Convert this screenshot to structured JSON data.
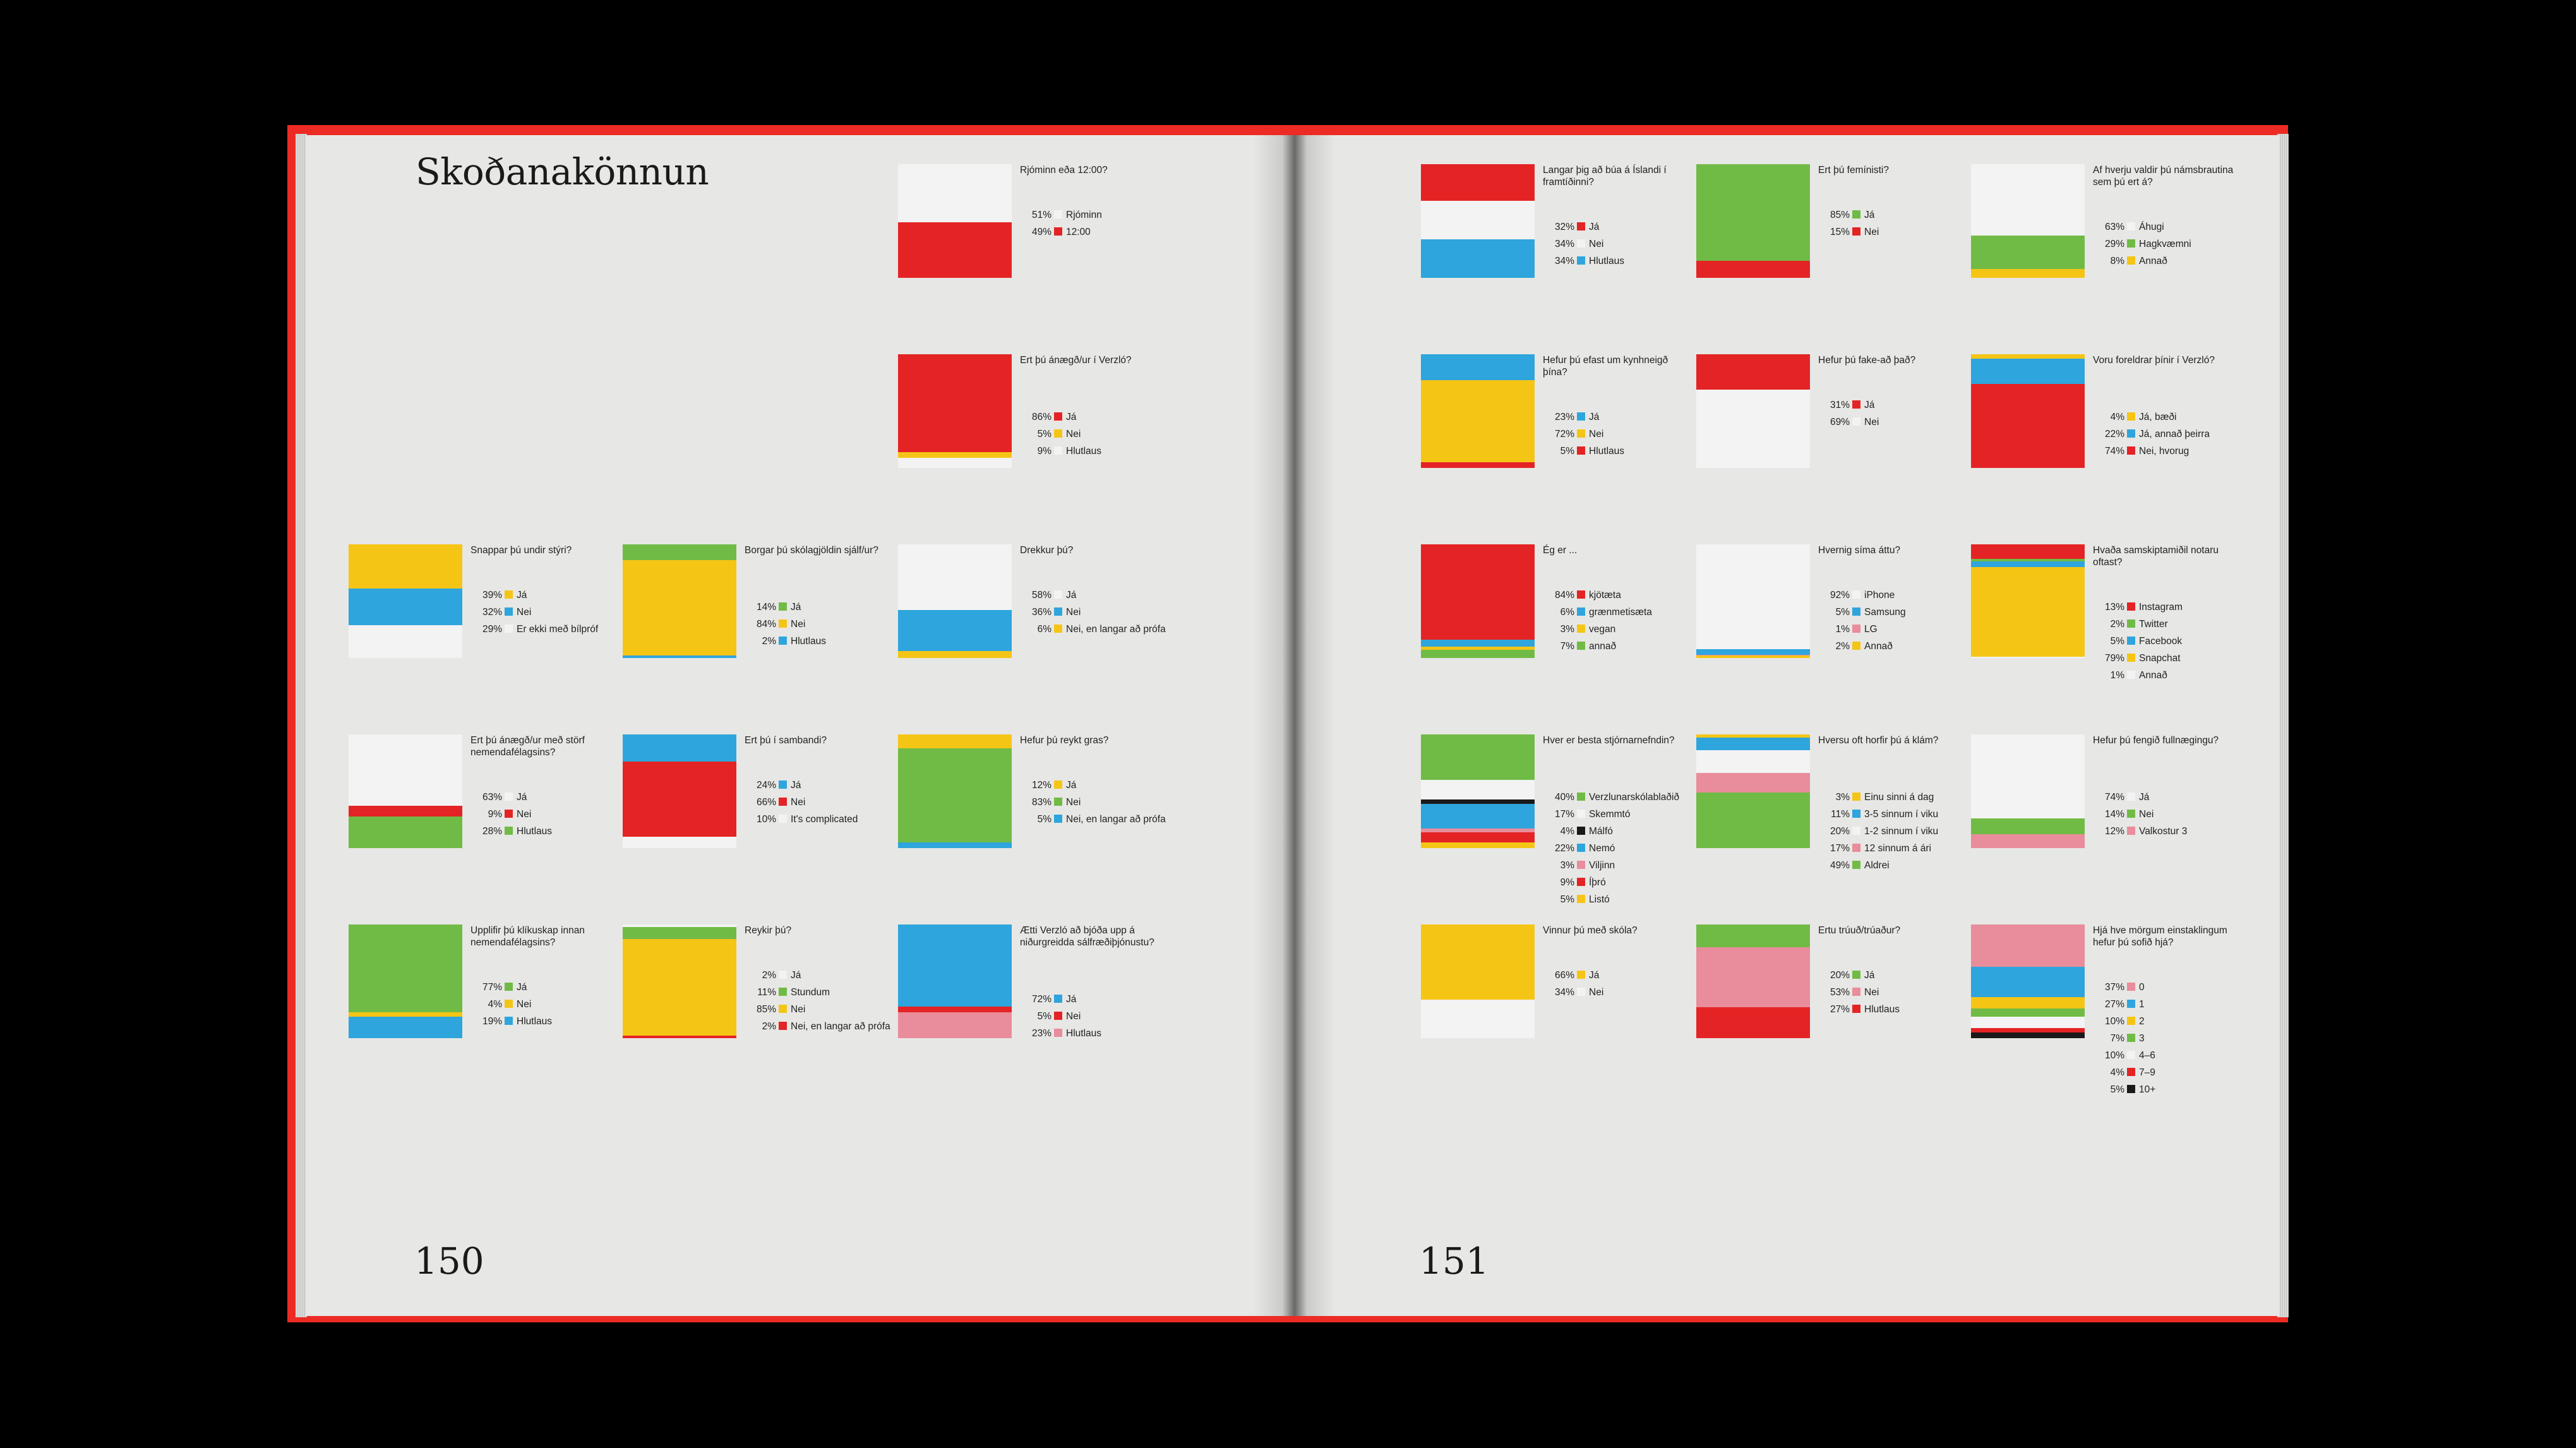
{
  "book": {
    "title": "Skoðanakönnun",
    "left_page_number": "150",
    "right_page_number": "151"
  },
  "colors": {
    "white": "#f3f3f3",
    "red": "#e42325",
    "yellow": "#f5c516",
    "blue": "#2ea5dc",
    "green": "#70bb45",
    "pink": "#e98c9b",
    "black": "#1a1a1a"
  },
  "chart_data": [
    {
      "type": "bar",
      "title": "Rjóminn eða 12:00?",
      "page": "150",
      "items": [
        {
          "label": "Rjóminn",
          "value": 51,
          "pct": "51%",
          "color": "white"
        },
        {
          "label": "12:00",
          "value": 49,
          "pct": "49%",
          "color": "red"
        }
      ]
    },
    {
      "type": "bar",
      "title": "Ert þú ánægð/ur í Verzló?",
      "page": "150",
      "items": [
        {
          "label": "Já",
          "value": 86,
          "pct": "86%",
          "color": "red"
        },
        {
          "label": "Nei",
          "value": 5,
          "pct": "5%",
          "color": "yellow"
        },
        {
          "label": "Hlutlaus",
          "value": 9,
          "pct": "9%",
          "color": "white"
        }
      ]
    },
    {
      "type": "bar",
      "title": "Snappar þú undir stýri?",
      "page": "150",
      "items": [
        {
          "label": "Já",
          "value": 39,
          "pct": "39%",
          "color": "yellow"
        },
        {
          "label": "Nei",
          "value": 32,
          "pct": "32%",
          "color": "blue"
        },
        {
          "label": "Er ekki með bílpróf",
          "value": 29,
          "pct": "29%",
          "color": "white"
        }
      ]
    },
    {
      "type": "bar",
      "title": "Borgar þú skólagjöldin sjálf/ur?",
      "page": "150",
      "items": [
        {
          "label": "Já",
          "value": 14,
          "pct": "14%",
          "color": "green"
        },
        {
          "label": "Nei",
          "value": 84,
          "pct": "84%",
          "color": "yellow"
        },
        {
          "label": "Hlutlaus",
          "value": 2,
          "pct": "2%",
          "color": "blue"
        }
      ]
    },
    {
      "type": "bar",
      "title": "Drekkur þú?",
      "page": "150",
      "items": [
        {
          "label": "Já",
          "value": 58,
          "pct": "58%",
          "color": "white"
        },
        {
          "label": "Nei",
          "value": 36,
          "pct": "36%",
          "color": "blue"
        },
        {
          "label": "Nei, en langar að prófa",
          "value": 6,
          "pct": "6%",
          "color": "yellow"
        }
      ]
    },
    {
      "type": "bar",
      "title": "Ert þú ánægð/ur með störf nemendafélagsins?",
      "page": "150",
      "items": [
        {
          "label": "Já",
          "value": 63,
          "pct": "63%",
          "color": "white"
        },
        {
          "label": "Nei",
          "value": 9,
          "pct": "9%",
          "color": "red"
        },
        {
          "label": "Hlutlaus",
          "value": 28,
          "pct": "28%",
          "color": "green"
        }
      ]
    },
    {
      "type": "bar",
      "title": "Ert þú í sambandi?",
      "page": "150",
      "items": [
        {
          "label": "Já",
          "value": 24,
          "pct": "24%",
          "color": "blue"
        },
        {
          "label": "Nei",
          "value": 66,
          "pct": "66%",
          "color": "red"
        },
        {
          "label": "It's complicated",
          "value": 10,
          "pct": "10%",
          "color": "white"
        }
      ]
    },
    {
      "type": "bar",
      "title": "Hefur þú reykt gras?",
      "page": "150",
      "items": [
        {
          "label": "Já",
          "value": 12,
          "pct": "12%",
          "color": "yellow"
        },
        {
          "label": "Nei",
          "value": 83,
          "pct": "83%",
          "color": "green"
        },
        {
          "label": "Nei, en langar að prófa",
          "value": 5,
          "pct": "5%",
          "color": "blue"
        }
      ]
    },
    {
      "type": "bar",
      "title": "Upplifir þú klíkuskap innan nemendafélagsins?",
      "page": "150",
      "items": [
        {
          "label": "Já",
          "value": 77,
          "pct": "77%",
          "color": "green"
        },
        {
          "label": "Nei",
          "value": 4,
          "pct": "4%",
          "color": "yellow"
        },
        {
          "label": "Hlutlaus",
          "value": 19,
          "pct": "19%",
          "color": "blue"
        }
      ]
    },
    {
      "type": "bar",
      "title": "Reykir þú?",
      "page": "150",
      "items": [
        {
          "label": "Já",
          "value": 2,
          "pct": "2%",
          "color": "white"
        },
        {
          "label": "Stundum",
          "value": 11,
          "pct": "11%",
          "color": "green"
        },
        {
          "label": "Nei",
          "value": 85,
          "pct": "85%",
          "color": "yellow"
        },
        {
          "label": "Nei, en langar að prófa",
          "value": 2,
          "pct": "2%",
          "color": "red"
        }
      ]
    },
    {
      "type": "bar",
      "title": "Ætti Verzló að bjóða upp á niðurgreidda sálfræðiþjónustu?",
      "page": "150",
      "items": [
        {
          "label": "Já",
          "value": 72,
          "pct": "72%",
          "color": "blue"
        },
        {
          "label": "Nei",
          "value": 5,
          "pct": "5%",
          "color": "red"
        },
        {
          "label": "Hlutlaus",
          "value": 23,
          "pct": "23%",
          "color": "pink"
        }
      ]
    },
    {
      "type": "bar",
      "title": "Langar þig að búa á Íslandi í framtíðinni?",
      "page": "151",
      "items": [
        {
          "label": "Já",
          "value": 32,
          "pct": "32%",
          "color": "red"
        },
        {
          "label": "Nei",
          "value": 34,
          "pct": "34%",
          "color": "white"
        },
        {
          "label": "Hlutlaus",
          "value": 34,
          "pct": "34%",
          "color": "blue"
        }
      ]
    },
    {
      "type": "bar",
      "title": "Ert þú femínisti?",
      "page": "151",
      "items": [
        {
          "label": "Já",
          "value": 85,
          "pct": "85%",
          "color": "green"
        },
        {
          "label": "Nei",
          "value": 15,
          "pct": "15%",
          "color": "red"
        }
      ]
    },
    {
      "type": "bar",
      "title": "Af hverju valdir þú námsbrautina sem þú ert á?",
      "page": "151",
      "items": [
        {
          "label": "Áhugi",
          "value": 63,
          "pct": "63%",
          "color": "white"
        },
        {
          "label": "Hagkvæmni",
          "value": 29,
          "pct": "29%",
          "color": "green"
        },
        {
          "label": "Annað",
          "value": 8,
          "pct": "8%",
          "color": "yellow"
        }
      ]
    },
    {
      "type": "bar",
      "title": "Hefur þú efast um kynhneigð þína?",
      "page": "151",
      "items": [
        {
          "label": "Já",
          "value": 23,
          "pct": "23%",
          "color": "blue"
        },
        {
          "label": "Nei",
          "value": 72,
          "pct": "72%",
          "color": "yellow"
        },
        {
          "label": "Hlutlaus",
          "value": 5,
          "pct": "5%",
          "color": "red"
        }
      ]
    },
    {
      "type": "bar",
      "title": "Hefur þú fake-að það?",
      "page": "151",
      "items": [
        {
          "label": "Já",
          "value": 31,
          "pct": "31%",
          "color": "red"
        },
        {
          "label": "Nei",
          "value": 69,
          "pct": "69%",
          "color": "white"
        }
      ]
    },
    {
      "type": "bar",
      "title": "Voru foreldrar þínir í Verzló?",
      "page": "151",
      "items": [
        {
          "label": "Já, bæði",
          "value": 4,
          "pct": "4%",
          "color": "yellow"
        },
        {
          "label": "Já, annað þeirra",
          "value": 22,
          "pct": "22%",
          "color": "blue"
        },
        {
          "label": "Nei, hvorug",
          "value": 74,
          "pct": "74%",
          "color": "red"
        }
      ]
    },
    {
      "type": "bar",
      "title": "Ég er ...",
      "page": "151",
      "items": [
        {
          "label": "kjötæta",
          "value": 84,
          "pct": "84%",
          "color": "red"
        },
        {
          "label": "grænmetisæta",
          "value": 6,
          "pct": "6%",
          "color": "blue"
        },
        {
          "label": "vegan",
          "value": 3,
          "pct": "3%",
          "color": "yellow"
        },
        {
          "label": "annað",
          "value": 7,
          "pct": "7%",
          "color": "green"
        }
      ]
    },
    {
      "type": "bar",
      "title": "Hvernig síma áttu?",
      "page": "151",
      "items": [
        {
          "label": "iPhone",
          "value": 92,
          "pct": "92%",
          "color": "white"
        },
        {
          "label": "Samsung",
          "value": 5,
          "pct": "5%",
          "color": "blue"
        },
        {
          "label": "LG",
          "value": 1,
          "pct": "1%",
          "color": "pink"
        },
        {
          "label": "Annað",
          "value": 2,
          "pct": "2%",
          "color": "yellow"
        }
      ]
    },
    {
      "type": "bar",
      "title": "Hvaða samskiptamiðil notaru oftast?",
      "page": "151",
      "items": [
        {
          "label": "Instagram",
          "value": 13,
          "pct": "13%",
          "color": "red"
        },
        {
          "label": "Twitter",
          "value": 2,
          "pct": "2%",
          "color": "green"
        },
        {
          "label": "Facebook",
          "value": 5,
          "pct": "5%",
          "color": "blue"
        },
        {
          "label": "Snapchat",
          "value": 79,
          "pct": "79%",
          "color": "yellow"
        },
        {
          "label": "Annað",
          "value": 1,
          "pct": "1%",
          "color": "white"
        }
      ]
    },
    {
      "type": "bar",
      "title": "Hver er besta stjórnarnefndin?",
      "page": "151",
      "items": [
        {
          "label": "Verzlunarskólablaðið",
          "value": 40,
          "pct": "40%",
          "color": "green"
        },
        {
          "label": "Skemmtó",
          "value": 17,
          "pct": "17%",
          "color": "white"
        },
        {
          "label": "Málfó",
          "value": 4,
          "pct": "4%",
          "color": "black"
        },
        {
          "label": "Nemó",
          "value": 22,
          "pct": "22%",
          "color": "blue"
        },
        {
          "label": "Viljinn",
          "value": 3,
          "pct": "3%",
          "color": "pink"
        },
        {
          "label": "Íþró",
          "value": 9,
          "pct": "9%",
          "color": "red"
        },
        {
          "label": "Listó",
          "value": 5,
          "pct": "5%",
          "color": "yellow"
        }
      ]
    },
    {
      "type": "bar",
      "title": "Hversu oft horfir þú á klám?",
      "page": "151",
      "items": [
        {
          "label": "Einu sinni á dag",
          "value": 3,
          "pct": "3%",
          "color": "yellow"
        },
        {
          "label": "3-5 sinnum í viku",
          "value": 11,
          "pct": "11%",
          "color": "blue"
        },
        {
          "label": "1-2 sinnum í viku",
          "value": 20,
          "pct": "20%",
          "color": "white"
        },
        {
          "label": "12 sinnum á ári",
          "value": 17,
          "pct": "17%",
          "color": "pink"
        },
        {
          "label": "Aldrei",
          "value": 49,
          "pct": "49%",
          "color": "green"
        }
      ]
    },
    {
      "type": "bar",
      "title": "Hefur þú fengið fullnægingu?",
      "page": "151",
      "items": [
        {
          "label": "Já",
          "value": 74,
          "pct": "74%",
          "color": "white"
        },
        {
          "label": "Nei",
          "value": 14,
          "pct": "14%",
          "color": "green"
        },
        {
          "label": "Valkostur 3",
          "value": 12,
          "pct": "12%",
          "color": "pink"
        }
      ]
    },
    {
      "type": "bar",
      "title": "Vinnur þú með skóla?",
      "page": "151",
      "items": [
        {
          "label": "Já",
          "value": 66,
          "pct": "66%",
          "color": "yellow"
        },
        {
          "label": "Nei",
          "value": 34,
          "pct": "34%",
          "color": "white"
        }
      ]
    },
    {
      "type": "bar",
      "title": "Ertu trúuð/trúaður?",
      "page": "151",
      "items": [
        {
          "label": "Já",
          "value": 20,
          "pct": "20%",
          "color": "green"
        },
        {
          "label": "Nei",
          "value": 53,
          "pct": "53%",
          "color": "pink"
        },
        {
          "label": "Hlutlaus",
          "value": 27,
          "pct": "27%",
          "color": "red"
        }
      ]
    },
    {
      "type": "bar",
      "title": "Hjá hve mörgum einstaklingum hefur þú sofið hjá?",
      "page": "151",
      "items": [
        {
          "label": "0",
          "value": 37,
          "pct": "37%",
          "color": "pink"
        },
        {
          "label": "1",
          "value": 27,
          "pct": "27%",
          "color": "blue"
        },
        {
          "label": "2",
          "value": 10,
          "pct": "10%",
          "color": "yellow"
        },
        {
          "label": "3",
          "value": 7,
          "pct": "7%",
          "color": "green"
        },
        {
          "label": "4–6",
          "value": 10,
          "pct": "10%",
          "color": "white"
        },
        {
          "label": "7–9",
          "value": 4,
          "pct": "4%",
          "color": "red"
        },
        {
          "label": "10+",
          "value": 5,
          "pct": "5%",
          "color": "black"
        }
      ]
    }
  ]
}
